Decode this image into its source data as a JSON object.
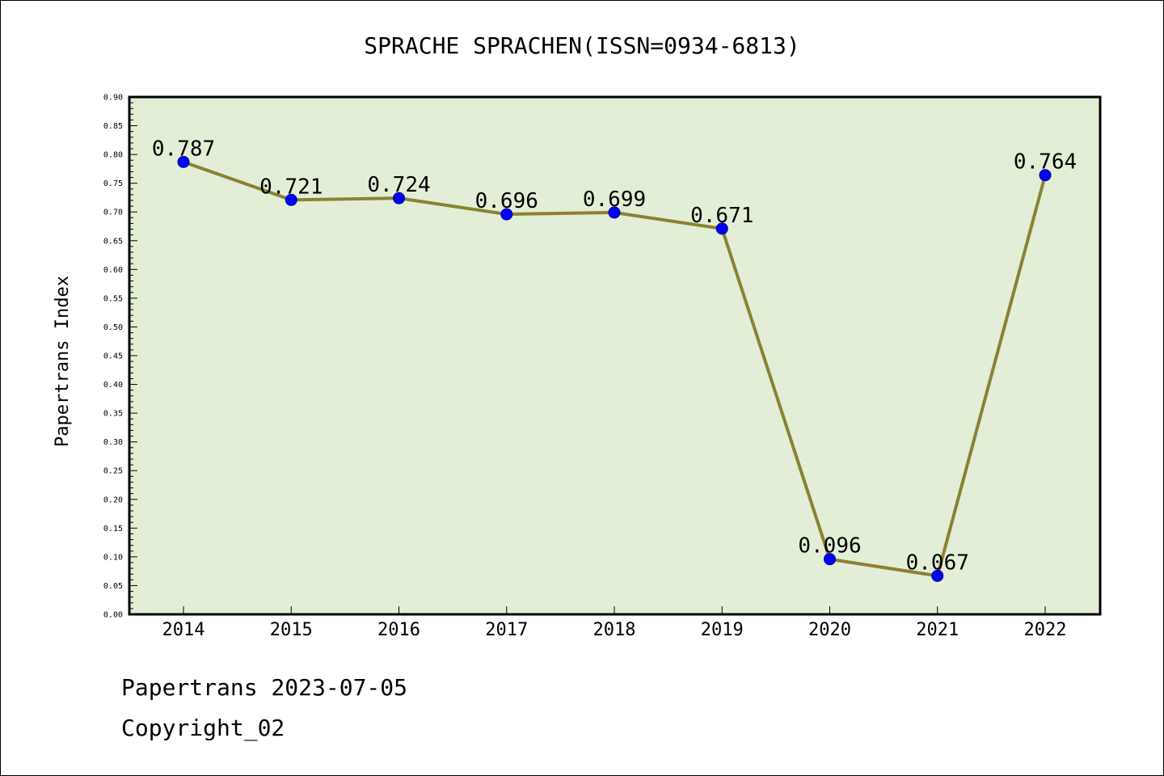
{
  "chart_data": {
    "type": "line",
    "title": "SPRACHE SPRACHEN(ISSN=0934-6813)",
    "ylabel": "Papertrans Index",
    "xlabel": "",
    "categories": [
      "2014",
      "2015",
      "2016",
      "2017",
      "2018",
      "2019",
      "2020",
      "2021",
      "2022"
    ],
    "values": [
      0.787,
      0.721,
      0.724,
      0.696,
      0.699,
      0.671,
      0.096,
      0.067,
      0.764
    ],
    "data_labels": [
      "0.787",
      "0.721",
      "0.724",
      "0.696",
      "0.699",
      "0.671",
      "0.096",
      "0.067",
      "0.764"
    ],
    "ylim": [
      0,
      0.9
    ],
    "yticks": [
      "0.00",
      "0.05",
      "0.10",
      "0.15",
      "0.20",
      "0.25",
      "0.30",
      "0.35",
      "0.40",
      "0.45",
      "0.50",
      "0.55",
      "0.60",
      "0.65",
      "0.70",
      "0.75",
      "0.80",
      "0.85",
      "0.90"
    ],
    "grid": false,
    "colors": {
      "plot_background": "#e2efd6",
      "line": "#8b8132",
      "marker_fill": "#0000ff",
      "marker_edge": "#00008b"
    }
  },
  "footer": {
    "date_line": "Papertrans 2023-07-05",
    "copyright": "Copyright_02"
  }
}
